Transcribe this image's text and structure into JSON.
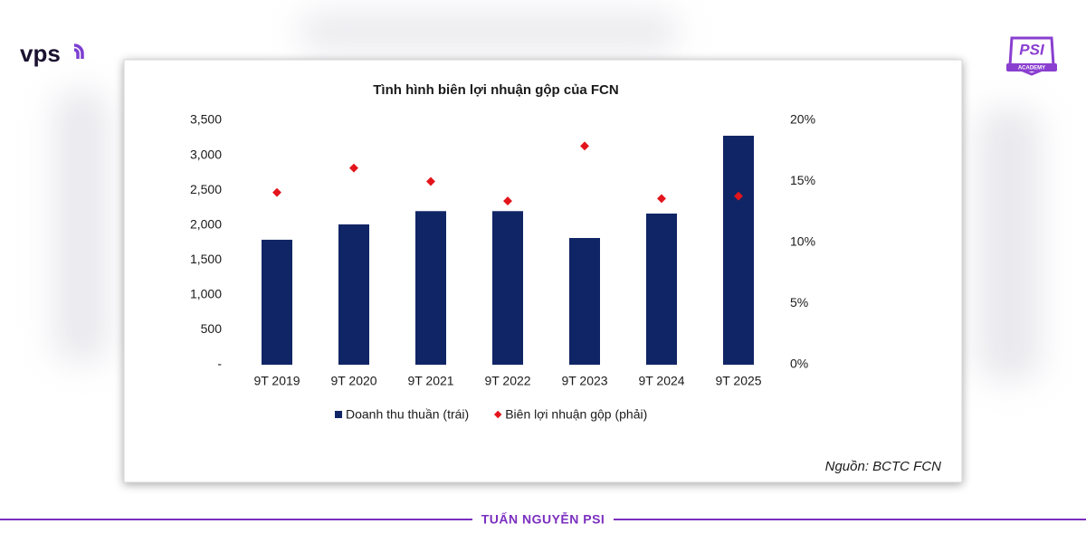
{
  "header": {
    "logo": "vps",
    "badge_title": "PSI",
    "badge_subtitle": "ACADEMY"
  },
  "chart_data": {
    "type": "bar",
    "title": "Tình hình biên lợi nhuận gộp của FCN",
    "categories": [
      "9T 2019",
      "9T 2020",
      "9T 2021",
      "9T 2022",
      "9T 2023",
      "9T 2024",
      "9T 2025"
    ],
    "series": [
      {
        "name": "Doanh thu thuần (trái)",
        "type": "bar",
        "axis": "y",
        "color": "#102565",
        "values": [
          1790,
          2010,
          2200,
          2200,
          1815,
          2165,
          3280
        ]
      },
      {
        "name": "Biên lợi nhuận gộp (phải)",
        "type": "scatter",
        "axis": "y2",
        "color": "#e3141b",
        "values": [
          14.1,
          16.1,
          15.0,
          13.4,
          17.9,
          13.6,
          13.8
        ]
      }
    ],
    "ylim": [
      0,
      3500
    ],
    "yticks": [
      {
        "value": 0,
        "label": "-"
      },
      500,
      {
        "value": 1000,
        "label": "1,000"
      },
      {
        "value": 1500,
        "label": "1,500"
      },
      {
        "value": 2000,
        "label": "2,000"
      },
      {
        "value": 2500,
        "label": "2,500"
      },
      {
        "value": 3000,
        "label": "3,000"
      },
      {
        "value": 3500,
        "label": "3,500"
      }
    ],
    "y2lim": [
      0,
      20
    ],
    "y2ticks": [
      {
        "value": 0,
        "label": "0%"
      },
      {
        "value": 5,
        "label": "5%"
      },
      {
        "value": 10,
        "label": "10%"
      },
      {
        "value": 15,
        "label": "15%"
      },
      {
        "value": 20,
        "label": "20%"
      }
    ],
    "grid": false,
    "legend": "bottom",
    "source": "Nguồn: BCTC FCN"
  },
  "footer": {
    "text": "TUẤN NGUYỄN PSI"
  }
}
